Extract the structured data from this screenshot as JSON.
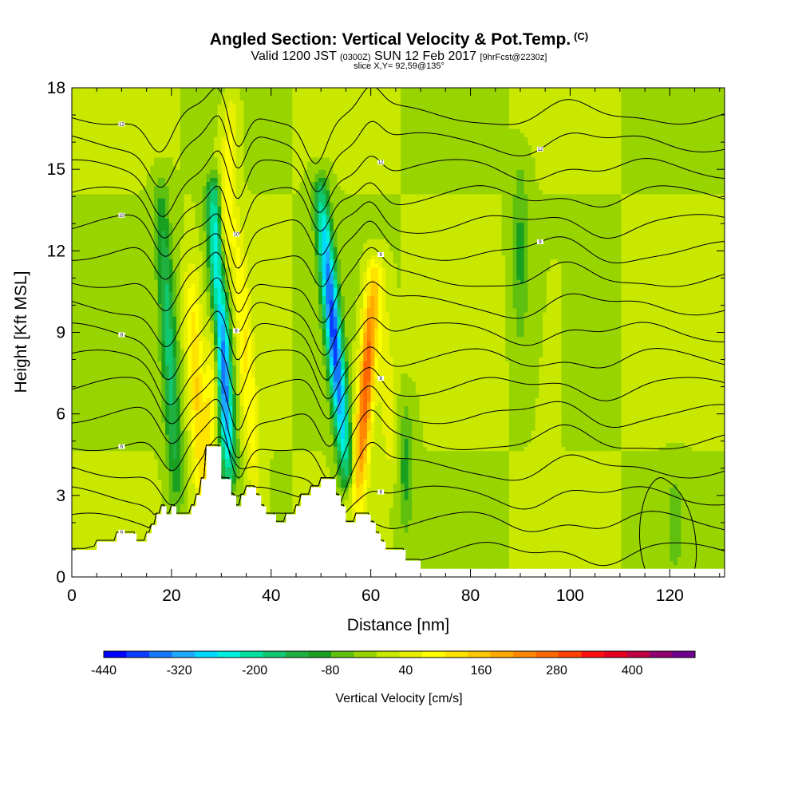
{
  "header": {
    "title": "Angled Section: Vertical Velocity & Pot.Temp.",
    "title_mark": "(C)",
    "subtitle_a": "Valid 1200 JST",
    "subtitle_b": "(0300Z)",
    "subtitle_c": "SUN 12 Feb 2017",
    "subtitle_d": "[9hrFcst@2230z]",
    "slice": "slice X,Y= 92,59@135°"
  },
  "chart_data": {
    "type": "heatmap",
    "xlabel": "Distance [nm]",
    "ylabel": "Height [Kft MSL]",
    "xlim": [
      0,
      131
    ],
    "ylim": [
      0,
      18
    ],
    "x_ticks": [
      0,
      20,
      40,
      60,
      80,
      100,
      120
    ],
    "y_ticks": [
      0,
      3,
      6,
      9,
      12,
      15,
      18
    ],
    "background_value_cm_s": 40,
    "velocity_features": [
      {
        "kind": "updraft",
        "x_start": 27,
        "x_end": 32,
        "z_start": 3,
        "z_end": 17,
        "peak_cm_s": 200
      },
      {
        "kind": "downdraft",
        "x_start": 31.5,
        "x_end": 28.5,
        "z_start": 4,
        "z_end": 14,
        "peak_cm_s": -420
      },
      {
        "kind": "updraft",
        "x_start": 37,
        "x_end": 33,
        "z_start": 3,
        "z_end": 13,
        "peak_cm_s": 160
      },
      {
        "kind": "downdraft",
        "x_start": 21,
        "x_end": 18,
        "z_start": 3,
        "z_end": 14,
        "peak_cm_s": -140
      },
      {
        "kind": "updraft",
        "x_start": 26,
        "x_end": 24,
        "z_start": 3,
        "z_end": 11,
        "peak_cm_s": 200
      },
      {
        "kind": "downdraft",
        "x_start": 55,
        "x_end": 50,
        "z_start": 4,
        "z_end": 14,
        "peak_cm_s": -380
      },
      {
        "kind": "updraft",
        "x_start": 57.5,
        "x_end": 60.5,
        "z_start": 3,
        "z_end": 11,
        "peak_cm_s": 360
      },
      {
        "kind": "updraft",
        "x_start": 64,
        "x_end": 62,
        "z_start": 4,
        "z_end": 11,
        "peak_cm_s": 120
      },
      {
        "kind": "downdraft",
        "x_start": 67,
        "x_end": 67,
        "z_start": 2,
        "z_end": 6,
        "peak_cm_s": -60
      },
      {
        "kind": "downdraft",
        "x_start": 90,
        "x_end": 90,
        "z_start": 9,
        "z_end": 15,
        "peak_cm_s": -50
      },
      {
        "kind": "updraft",
        "x_start": 95,
        "x_end": 97,
        "z_start": 4,
        "z_end": 11,
        "peak_cm_s": 70
      },
      {
        "kind": "downdraft",
        "x_start": 121,
        "x_end": 121,
        "z_start": 0.5,
        "z_end": 3.5,
        "peak_cm_s": -30
      }
    ],
    "terrain": [
      [
        0,
        1
      ],
      [
        5,
        1
      ],
      [
        5,
        1.3
      ],
      [
        9,
        1.3
      ],
      [
        9,
        1.6
      ],
      [
        13,
        1.6
      ],
      [
        13,
        1.3
      ],
      [
        15,
        1.3
      ],
      [
        15,
        1.6
      ],
      [
        16,
        1.6
      ],
      [
        16,
        1.9
      ],
      [
        17,
        1.9
      ],
      [
        17,
        2.3
      ],
      [
        18,
        2.3
      ],
      [
        18,
        2.6
      ],
      [
        19,
        2.6
      ],
      [
        19,
        2.3
      ],
      [
        20,
        2.3
      ],
      [
        20,
        2.6
      ],
      [
        21,
        2.6
      ],
      [
        21,
        2.3
      ],
      [
        24,
        2.3
      ],
      [
        24,
        2.6
      ],
      [
        25,
        2.6
      ],
      [
        25,
        3
      ],
      [
        26,
        3
      ],
      [
        26,
        3.6
      ],
      [
        27,
        3.6
      ],
      [
        27,
        4.8
      ],
      [
        30,
        4.8
      ],
      [
        30,
        3.6
      ],
      [
        32,
        3.6
      ],
      [
        32,
        3
      ],
      [
        33,
        3
      ],
      [
        33,
        2.6
      ],
      [
        34,
        2.6
      ],
      [
        34,
        3
      ],
      [
        35,
        3
      ],
      [
        35,
        3.3
      ],
      [
        37,
        3.3
      ],
      [
        37,
        3
      ],
      [
        38,
        3
      ],
      [
        38,
        2.6
      ],
      [
        39,
        2.6
      ],
      [
        39,
        2.3
      ],
      [
        41,
        2.3
      ],
      [
        41,
        2
      ],
      [
        43,
        2
      ],
      [
        43,
        2.3
      ],
      [
        45,
        2.3
      ],
      [
        45,
        2.6
      ],
      [
        46,
        2.6
      ],
      [
        46,
        3
      ],
      [
        48,
        3
      ],
      [
        48,
        3.3
      ],
      [
        50,
        3.3
      ],
      [
        50,
        3.6
      ],
      [
        53,
        3.6
      ],
      [
        53,
        3
      ],
      [
        54,
        3
      ],
      [
        54,
        2.6
      ],
      [
        55,
        2.6
      ],
      [
        55,
        2
      ],
      [
        57,
        2
      ],
      [
        57,
        2.3
      ],
      [
        60,
        2.3
      ],
      [
        60,
        2
      ],
      [
        61,
        2
      ],
      [
        61,
        1.6
      ],
      [
        62,
        1.6
      ],
      [
        62,
        1.3
      ],
      [
        63,
        1.3
      ],
      [
        63,
        1
      ],
      [
        67,
        1
      ],
      [
        67,
        0.6
      ],
      [
        70,
        0.6
      ],
      [
        70,
        0.3
      ],
      [
        131,
        0.3
      ]
    ],
    "isentropes_base_kft": [
      0.9,
      2.0,
      3.0,
      4.0,
      5.0,
      6.0,
      7.0,
      8.0,
      9.0,
      10.0,
      11.0,
      12.0,
      13.0,
      14.0,
      15.0,
      16.0,
      17.0
    ],
    "isentrope_labels": [
      "6",
      "6",
      "6",
      "8",
      "8",
      "8",
      "9",
      "9",
      "10",
      "10",
      "12",
      "12",
      "12",
      "12",
      "14",
      "14",
      "14",
      "16",
      "16",
      "16",
      "16",
      "18",
      "18"
    ],
    "colorbar": {
      "title": "Vertical Velocity [cm/s]",
      "min": -440,
      "max": 460,
      "step": 40,
      "tick_labels": [
        "-440",
        "-320",
        "-200",
        "-80",
        "40",
        "160",
        "280",
        "400"
      ],
      "tick_values": [
        -440,
        -320,
        -200,
        -80,
        40,
        160,
        280,
        400
      ],
      "colors": [
        "#0000ff",
        "#0a3cff",
        "#1478ff",
        "#1ea8ff",
        "#00d8ff",
        "#00f0e0",
        "#00e0a0",
        "#10c870",
        "#20b040",
        "#1aa020",
        "#60c010",
        "#98d400",
        "#c8e800",
        "#e8f000",
        "#ffff00",
        "#ffe400",
        "#ffc800",
        "#ffa800",
        "#ff8800",
        "#ff6800",
        "#ff4000",
        "#ff1010",
        "#e80020",
        "#c00040",
        "#900070",
        "#700090"
      ]
    }
  }
}
